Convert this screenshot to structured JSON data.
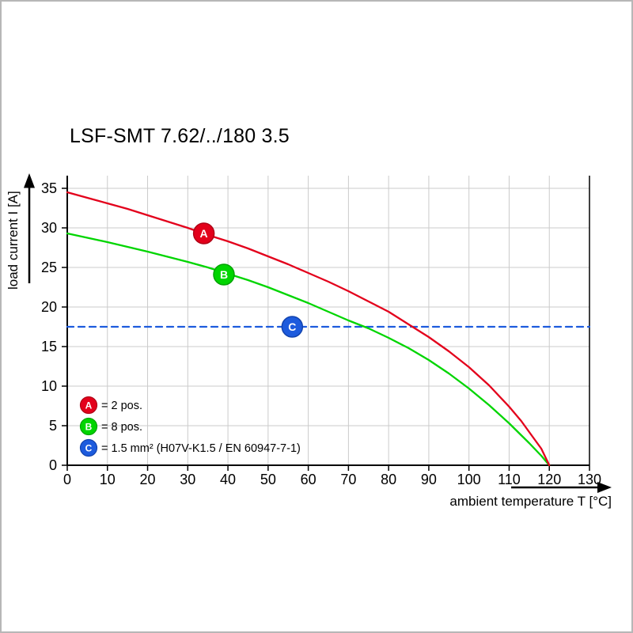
{
  "chart_data": {
    "type": "line",
    "title": "LSF-SMT 7.62/../180 3.5",
    "xlabel": "ambient temperature T [°C]",
    "ylabel": "load current I [A]",
    "xlim": [
      0,
      130
    ],
    "ylim": [
      0,
      36.6
    ],
    "x_ticks": [
      0,
      10,
      20,
      30,
      40,
      50,
      60,
      70,
      80,
      90,
      100,
      110,
      120,
      130
    ],
    "y_ticks": [
      0,
      5,
      10,
      15,
      20,
      25,
      30,
      35
    ],
    "grid": true,
    "grid_color": "#cbcbcb",
    "axis_color": "#000000",
    "legend_position": "inside-bottom-left",
    "series": [
      {
        "name": "A",
        "label": "= 2 pos.",
        "color": "#e3001b",
        "ring": "#b00015",
        "dashed": false,
        "marker": {
          "t": 34,
          "i": 29.3
        },
        "points": [
          [
            0,
            34.5
          ],
          [
            5,
            33.8
          ],
          [
            10,
            33.1
          ],
          [
            15,
            32.4
          ],
          [
            20,
            31.6
          ],
          [
            25,
            30.8
          ],
          [
            30,
            30.0
          ],
          [
            35,
            29.1
          ],
          [
            40,
            28.3
          ],
          [
            45,
            27.4
          ],
          [
            50,
            26.4
          ],
          [
            55,
            25.4
          ],
          [
            60,
            24.3
          ],
          [
            65,
            23.2
          ],
          [
            70,
            22.0
          ],
          [
            75,
            20.7
          ],
          [
            80,
            19.4
          ],
          [
            85,
            17.8
          ],
          [
            90,
            16.2
          ],
          [
            95,
            14.4
          ],
          [
            100,
            12.4
          ],
          [
            105,
            10.1
          ],
          [
            110,
            7.4
          ],
          [
            113,
            5.6
          ],
          [
            116,
            3.5
          ],
          [
            118,
            2.1
          ],
          [
            120,
            0
          ]
        ]
      },
      {
        "name": "B",
        "label": "= 8 pos.",
        "color": "#00d500",
        "ring": "#00a300",
        "dashed": false,
        "marker": {
          "t": 39,
          "i": 24.1
        },
        "points": [
          [
            0,
            29.3
          ],
          [
            5,
            28.75
          ],
          [
            10,
            28.2
          ],
          [
            15,
            27.6
          ],
          [
            20,
            27.0
          ],
          [
            25,
            26.35
          ],
          [
            30,
            25.7
          ],
          [
            35,
            25.0
          ],
          [
            40,
            24.2
          ],
          [
            45,
            23.4
          ],
          [
            50,
            22.5
          ],
          [
            55,
            21.5
          ],
          [
            60,
            20.5
          ],
          [
            65,
            19.4
          ],
          [
            70,
            18.3
          ],
          [
            75,
            17.3
          ],
          [
            80,
            16.1
          ],
          [
            85,
            14.8
          ],
          [
            90,
            13.3
          ],
          [
            95,
            11.6
          ],
          [
            100,
            9.7
          ],
          [
            105,
            7.6
          ],
          [
            110,
            5.3
          ],
          [
            115,
            2.8
          ],
          [
            118,
            1.2
          ],
          [
            120,
            0
          ]
        ]
      },
      {
        "name": "C",
        "label": "= 1.5 mm² (H07V-K1.5 / EN 60947-7-1)",
        "color": "#1d5bdd",
        "ring": "#1243ae",
        "dashed": true,
        "marker": {
          "t": 56,
          "i": 17.5
        },
        "points": [
          [
            0,
            17.5
          ],
          [
            130,
            17.5
          ]
        ]
      }
    ]
  }
}
